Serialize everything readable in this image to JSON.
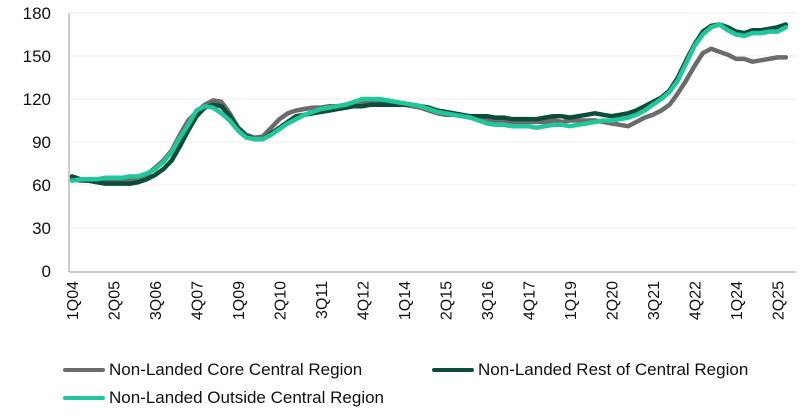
{
  "chart_data": {
    "type": "line",
    "title": "",
    "xlabel": "",
    "ylabel": "",
    "ylim": [
      0,
      180
    ],
    "yticks": [
      0,
      30,
      60,
      90,
      120,
      150,
      180
    ],
    "grid": "horizontal",
    "legend_placement": "bottom",
    "categories": [
      "1Q04",
      "2Q04",
      "3Q04",
      "4Q04",
      "1Q05",
      "2Q05",
      "3Q05",
      "4Q05",
      "1Q06",
      "2Q06",
      "3Q06",
      "4Q06",
      "1Q07",
      "2Q07",
      "3Q07",
      "4Q07",
      "1Q08",
      "2Q08",
      "3Q08",
      "4Q08",
      "1Q09",
      "2Q09",
      "3Q09",
      "4Q09",
      "1Q10",
      "2Q10",
      "3Q10",
      "4Q10",
      "1Q11",
      "2Q11",
      "3Q11",
      "4Q11",
      "1Q12",
      "2Q12",
      "3Q12",
      "4Q12",
      "1Q13",
      "2Q13",
      "3Q13",
      "4Q13",
      "1Q14",
      "2Q14",
      "3Q14",
      "4Q14",
      "1Q15",
      "2Q15",
      "3Q15",
      "4Q15",
      "1Q16",
      "2Q16",
      "3Q16",
      "4Q16",
      "1Q17",
      "2Q17",
      "3Q17",
      "4Q17",
      "1Q18",
      "2Q18",
      "3Q18",
      "4Q18",
      "1Q19",
      "2Q19",
      "3Q19",
      "4Q19",
      "1Q20",
      "2Q20",
      "3Q20",
      "4Q20",
      "1Q21",
      "2Q21",
      "3Q21",
      "4Q21",
      "1Q22",
      "2Q22",
      "3Q22",
      "4Q22",
      "1Q23",
      "2Q23",
      "3Q23",
      "4Q23",
      "1Q24",
      "2Q24",
      "3Q24",
      "4Q24",
      "1Q25",
      "2Q25",
      "3Q25"
    ],
    "xtick_labels": [
      "1Q04",
      "2Q05",
      "3Q06",
      "4Q07",
      "1Q09",
      "2Q10",
      "3Q11",
      "4Q12",
      "1Q14",
      "2Q15",
      "3Q16",
      "4Q17",
      "1Q19",
      "2Q20",
      "3Q21",
      "4Q22",
      "1Q24",
      "2Q25"
    ],
    "series": [
      {
        "name": "Non-Landed Core Central Region",
        "color": "#6b6b6b",
        "values": [
          64,
          63,
          63,
          62,
          62,
          62,
          63,
          64,
          65,
          67,
          72,
          77,
          84,
          95,
          105,
          111,
          116,
          119,
          118,
          110,
          100,
          95,
          93,
          94,
          100,
          106,
          110,
          112,
          113,
          114,
          114,
          115,
          115,
          116,
          117,
          117,
          117,
          117,
          117,
          116,
          116,
          115,
          114,
          112,
          110,
          109,
          109,
          108,
          107,
          106,
          105,
          105,
          104,
          104,
          104,
          104,
          104,
          104,
          105,
          104,
          105,
          105,
          105,
          105,
          104,
          103,
          102,
          101,
          104,
          107,
          109,
          112,
          116,
          124,
          133,
          143,
          152,
          155,
          153,
          151,
          148,
          148,
          146,
          147,
          148,
          149,
          149
        ]
      },
      {
        "name": "Non-Landed Rest of Central Region",
        "color": "#0b4d3a",
        "values": [
          66,
          64,
          63,
          62,
          61,
          61,
          61,
          61,
          62,
          64,
          67,
          71,
          77,
          87,
          98,
          108,
          114,
          116,
          115,
          108,
          100,
          94,
          92,
          92,
          96,
          100,
          104,
          108,
          109,
          110,
          111,
          112,
          113,
          114,
          115,
          115,
          116,
          116,
          116,
          116,
          116,
          116,
          115,
          114,
          112,
          111,
          110,
          109,
          108,
          108,
          108,
          107,
          107,
          106,
          106,
          106,
          106,
          107,
          108,
          108,
          107,
          108,
          109,
          110,
          109,
          108,
          109,
          110,
          112,
          115,
          118,
          121,
          126,
          135,
          147,
          158,
          167,
          171,
          172,
          170,
          167,
          166,
          168,
          168,
          169,
          170,
          172
        ]
      },
      {
        "name": "Non-Landed Outside Central Region",
        "color": "#1fc79b",
        "values": [
          63,
          64,
          64,
          64,
          65,
          65,
          65,
          66,
          66,
          68,
          71,
          76,
          83,
          93,
          102,
          112,
          115,
          114,
          110,
          105,
          98,
          93,
          92,
          92,
          95,
          99,
          103,
          106,
          109,
          111,
          113,
          114,
          115,
          116,
          118,
          120,
          120,
          120,
          119,
          118,
          117,
          116,
          115,
          113,
          111,
          110,
          109,
          108,
          107,
          105,
          103,
          102,
          102,
          101,
          101,
          101,
          100,
          101,
          102,
          102,
          101,
          102,
          103,
          104,
          105,
          105,
          106,
          107,
          109,
          112,
          116,
          120,
          125,
          133,
          145,
          157,
          165,
          170,
          172,
          168,
          165,
          164,
          166,
          166,
          167,
          167,
          170
        ]
      }
    ]
  }
}
